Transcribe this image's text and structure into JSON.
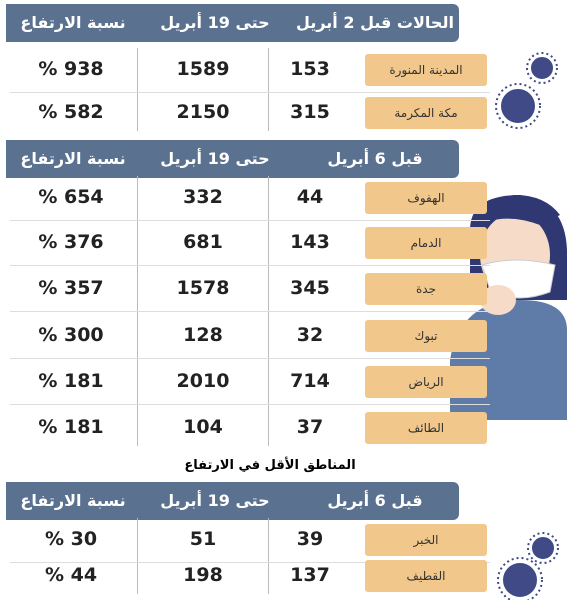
{
  "sections": [
    {
      "header": [
        "الحالات قبل 2 أبريل",
        "حتى 19 أبريل",
        "نسبة الارتفاع"
      ],
      "rows": [
        {
          "city": "المدينة المنورة",
          "before": 153,
          "after": 1589,
          "increase": "% 938"
        },
        {
          "city": "مكة المكرمة",
          "before": 315,
          "after": 2150,
          "increase": "% 582"
        }
      ]
    },
    {
      "header": [
        "قبل 6 أبريل",
        "حتى 19 أبريل",
        "نسبة الارتفاع"
      ],
      "rows": [
        {
          "city": "الهفوف",
          "before": 44,
          "after": 332,
          "increase": "% 654"
        },
        {
          "city": "الدمام",
          "before": 143,
          "after": 681,
          "increase": "% 376"
        },
        {
          "city": "جدة",
          "before": 345,
          "after": 1578,
          "increase": "% 357"
        },
        {
          "city": "تبوك",
          "before": 32,
          "after": 128,
          "increase": "% 300"
        },
        {
          "city": "الرياض",
          "before": 714,
          "after": 2010,
          "increase": "% 181"
        },
        {
          "city": "الطائف",
          "before": 37,
          "after": 104,
          "increase": "% 181"
        }
      ]
    },
    {
      "subtitle": "المناطق الأقل في الارتفاع",
      "header": [
        "قبل 6 أبريل",
        "حتى 19 أبريل",
        "نسبة الارتفاع"
      ],
      "rows": [
        {
          "city": "الخبر",
          "before": 39,
          "after": 51,
          "increase": "% 30"
        },
        {
          "city": "القطيف",
          "before": 137,
          "after": 198,
          "increase": "% 44"
        }
      ]
    }
  ]
}
